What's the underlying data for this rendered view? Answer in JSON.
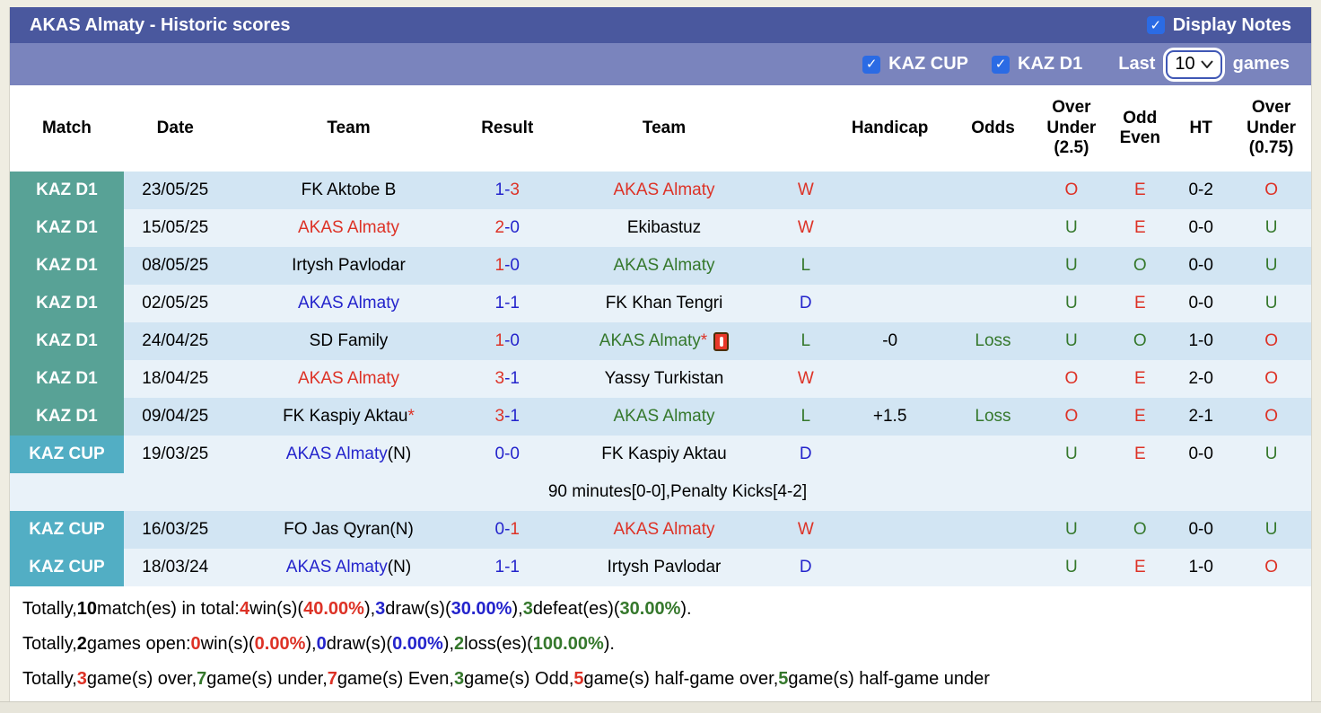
{
  "header": {
    "title": "AKAS Almaty - Historic scores",
    "display_notes_label": "Display Notes"
  },
  "filters": {
    "kaz_cup_label": "KAZ CUP",
    "kaz_d1_label": "KAZ D1",
    "last_label": "Last",
    "games_count": "10",
    "games_label": "games"
  },
  "colors": {
    "k": "#000000",
    "red": "#dd3226",
    "blue": "#2424cc",
    "green": "#35782c",
    "badge_d1": "#58a296",
    "badge_cup": "#52aec4",
    "titlebar": "#4a589e",
    "filterbar": "#7a84bd",
    "checkbox": "#2b6be4",
    "row_dark": "#d2e5f3",
    "row_light": "#e9f2f9"
  },
  "table": {
    "columns": [
      {
        "label": "Match"
      },
      {
        "label": "Date"
      },
      {
        "label": "Team"
      },
      {
        "label": "Result"
      },
      {
        "label": "Team"
      },
      {
        "label": ""
      },
      {
        "label": "Handicap"
      },
      {
        "label": "Odds"
      },
      {
        "label": "Over\nUnder\n(2.5)"
      },
      {
        "label": "Odd\nEven"
      },
      {
        "label": "HT"
      },
      {
        "label": "Over\nUnder\n(0.75)"
      }
    ],
    "rows": [
      {
        "type": "match",
        "stripe": "dark",
        "league": "KAZ D1",
        "league_class": "d1",
        "date": "23/05/25",
        "team1": [
          {
            "t": "FK Aktobe B",
            "c": "k"
          }
        ],
        "result": {
          "h": "1",
          "hc": "blue",
          "a": "3",
          "ac": "red",
          "dc": "blue"
        },
        "team2": [
          {
            "t": "AKAS Almaty",
            "c": "red"
          }
        ],
        "wdl": {
          "t": "W",
          "c": "red"
        },
        "handicap": "",
        "odds": {
          "t": "",
          "c": "green"
        },
        "ou25": {
          "t": "O",
          "c": "red"
        },
        "oe": {
          "t": "E",
          "c": "red"
        },
        "ht": "0-2",
        "ou075": {
          "t": "O",
          "c": "red"
        }
      },
      {
        "type": "match",
        "stripe": "light",
        "league": "KAZ D1",
        "league_class": "d1",
        "date": "15/05/25",
        "team1": [
          {
            "t": "AKAS Almaty",
            "c": "red"
          }
        ],
        "result": {
          "h": "2",
          "hc": "red",
          "a": "0",
          "ac": "blue",
          "dc": "blue"
        },
        "team2": [
          {
            "t": "Ekibastuz",
            "c": "k"
          }
        ],
        "wdl": {
          "t": "W",
          "c": "red"
        },
        "handicap": "",
        "odds": {
          "t": "",
          "c": "green"
        },
        "ou25": {
          "t": "U",
          "c": "green"
        },
        "oe": {
          "t": "E",
          "c": "red"
        },
        "ht": "0-0",
        "ou075": {
          "t": "U",
          "c": "green"
        }
      },
      {
        "type": "match",
        "stripe": "dark",
        "league": "KAZ D1",
        "league_class": "d1",
        "date": "08/05/25",
        "team1": [
          {
            "t": "Irtysh Pavlodar",
            "c": "k"
          }
        ],
        "result": {
          "h": "1",
          "hc": "red",
          "a": "0",
          "ac": "blue",
          "dc": "blue"
        },
        "team2": [
          {
            "t": "AKAS Almaty",
            "c": "green"
          }
        ],
        "wdl": {
          "t": "L",
          "c": "green"
        },
        "handicap": "",
        "odds": {
          "t": "",
          "c": "green"
        },
        "ou25": {
          "t": "U",
          "c": "green"
        },
        "oe": {
          "t": "O",
          "c": "green"
        },
        "ht": "0-0",
        "ou075": {
          "t": "U",
          "c": "green"
        }
      },
      {
        "type": "match",
        "stripe": "light",
        "league": "KAZ D1",
        "league_class": "d1",
        "date": "02/05/25",
        "team1": [
          {
            "t": "AKAS Almaty",
            "c": "blue"
          }
        ],
        "result": {
          "h": "1",
          "hc": "blue",
          "a": "1",
          "ac": "blue",
          "dc": "blue"
        },
        "team2": [
          {
            "t": "FK Khan Tengri",
            "c": "k"
          }
        ],
        "wdl": {
          "t": "D",
          "c": "blue"
        },
        "handicap": "",
        "odds": {
          "t": "",
          "c": "green"
        },
        "ou25": {
          "t": "U",
          "c": "green"
        },
        "oe": {
          "t": "E",
          "c": "red"
        },
        "ht": "0-0",
        "ou075": {
          "t": "U",
          "c": "green"
        }
      },
      {
        "type": "match",
        "stripe": "dark",
        "league": "KAZ D1",
        "league_class": "d1",
        "date": "24/04/25",
        "team1": [
          {
            "t": "SD Family",
            "c": "k"
          }
        ],
        "result": {
          "h": "1",
          "hc": "red",
          "a": "0",
          "ac": "blue",
          "dc": "blue"
        },
        "team2": [
          {
            "t": "AKAS Almaty",
            "c": "green"
          },
          {
            "t": "*",
            "c": "red"
          },
          {
            "icon": "red-card-icon"
          }
        ],
        "wdl": {
          "t": "L",
          "c": "green"
        },
        "handicap": "-0",
        "odds": {
          "t": "Loss",
          "c": "green"
        },
        "ou25": {
          "t": "U",
          "c": "green"
        },
        "oe": {
          "t": "O",
          "c": "green"
        },
        "ht": "1-0",
        "ou075": {
          "t": "O",
          "c": "red"
        }
      },
      {
        "type": "match",
        "stripe": "light",
        "league": "KAZ D1",
        "league_class": "d1",
        "date": "18/04/25",
        "team1": [
          {
            "t": "AKAS Almaty",
            "c": "red"
          }
        ],
        "result": {
          "h": "3",
          "hc": "red",
          "a": "1",
          "ac": "blue",
          "dc": "blue"
        },
        "team2": [
          {
            "t": "Yassy Turkistan",
            "c": "k"
          }
        ],
        "wdl": {
          "t": "W",
          "c": "red"
        },
        "handicap": "",
        "odds": {
          "t": "",
          "c": "green"
        },
        "ou25": {
          "t": "O",
          "c": "red"
        },
        "oe": {
          "t": "E",
          "c": "red"
        },
        "ht": "2-0",
        "ou075": {
          "t": "O",
          "c": "red"
        }
      },
      {
        "type": "match",
        "stripe": "dark",
        "league": "KAZ D1",
        "league_class": "d1",
        "date": "09/04/25",
        "team1": [
          {
            "t": "FK Kaspiy Aktau",
            "c": "k"
          },
          {
            "t": "*",
            "c": "red"
          }
        ],
        "result": {
          "h": "3",
          "hc": "red",
          "a": "1",
          "ac": "blue",
          "dc": "blue"
        },
        "team2": [
          {
            "t": "AKAS Almaty",
            "c": "green"
          }
        ],
        "wdl": {
          "t": "L",
          "c": "green"
        },
        "handicap": "+1.5",
        "odds": {
          "t": "Loss",
          "c": "green"
        },
        "ou25": {
          "t": "O",
          "c": "red"
        },
        "oe": {
          "t": "E",
          "c": "red"
        },
        "ht": "2-1",
        "ou075": {
          "t": "O",
          "c": "red"
        }
      },
      {
        "type": "match",
        "stripe": "light",
        "league": "KAZ CUP",
        "league_class": "cup",
        "date": "19/03/25",
        "team1": [
          {
            "t": "AKAS Almaty",
            "c": "blue"
          },
          {
            "t": "(N)",
            "c": "k"
          }
        ],
        "result": {
          "h": "0",
          "hc": "blue",
          "a": "0",
          "ac": "blue",
          "dc": "blue"
        },
        "team2": [
          {
            "t": "FK Kaspiy Aktau",
            "c": "k"
          }
        ],
        "wdl": {
          "t": "D",
          "c": "blue"
        },
        "handicap": "",
        "odds": {
          "t": "",
          "c": "green"
        },
        "ou25": {
          "t": "U",
          "c": "green"
        },
        "oe": {
          "t": "E",
          "c": "red"
        },
        "ht": "0-0",
        "ou075": {
          "t": "U",
          "c": "green"
        }
      },
      {
        "type": "note",
        "stripe": "light",
        "text": "90 minutes[0-0],Penalty Kicks[4-2]"
      },
      {
        "type": "match",
        "stripe": "dark",
        "league": "KAZ CUP",
        "league_class": "cup",
        "date": "16/03/25",
        "team1": [
          {
            "t": "FO Jas Qyran(N)",
            "c": "k"
          }
        ],
        "result": {
          "h": "0",
          "hc": "blue",
          "a": "1",
          "ac": "red",
          "dc": "blue"
        },
        "team2": [
          {
            "t": "AKAS Almaty",
            "c": "red"
          }
        ],
        "wdl": {
          "t": "W",
          "c": "red"
        },
        "handicap": "",
        "odds": {
          "t": "",
          "c": "green"
        },
        "ou25": {
          "t": "U",
          "c": "green"
        },
        "oe": {
          "t": "O",
          "c": "green"
        },
        "ht": "0-0",
        "ou075": {
          "t": "U",
          "c": "green"
        }
      },
      {
        "type": "match",
        "stripe": "light",
        "league": "KAZ CUP",
        "league_class": "cup",
        "date": "18/03/24",
        "team1": [
          {
            "t": "AKAS Almaty",
            "c": "blue"
          },
          {
            "t": "(N)",
            "c": "k"
          }
        ],
        "result": {
          "h": "1",
          "hc": "blue",
          "a": "1",
          "ac": "blue",
          "dc": "blue"
        },
        "team2": [
          {
            "t": "Irtysh Pavlodar",
            "c": "k"
          }
        ],
        "wdl": {
          "t": "D",
          "c": "blue"
        },
        "handicap": "",
        "odds": {
          "t": "",
          "c": "green"
        },
        "ou25": {
          "t": "U",
          "c": "green"
        },
        "oe": {
          "t": "E",
          "c": "red"
        },
        "ht": "1-0",
        "ou075": {
          "t": "O",
          "c": "red"
        }
      }
    ]
  },
  "summary_lines": [
    [
      {
        "t": "Totally, ",
        "c": "k"
      },
      {
        "t": "10",
        "c": "k",
        "b": true
      },
      {
        "t": " match(es) in total: ",
        "c": "k"
      },
      {
        "t": "4",
        "c": "red",
        "b": true
      },
      {
        "t": " win(s)(",
        "c": "k"
      },
      {
        "t": "40.00%",
        "c": "red",
        "b": true
      },
      {
        "t": "), ",
        "c": "k"
      },
      {
        "t": "3",
        "c": "blue",
        "b": true
      },
      {
        "t": " draw(s)(",
        "c": "k"
      },
      {
        "t": "30.00%",
        "c": "blue",
        "b": true
      },
      {
        "t": "), ",
        "c": "k"
      },
      {
        "t": "3",
        "c": "green",
        "b": true
      },
      {
        "t": " defeat(es)(",
        "c": "k"
      },
      {
        "t": "30.00%",
        "c": "green",
        "b": true
      },
      {
        "t": ").",
        "c": "k"
      }
    ],
    [
      {
        "t": "Totally, ",
        "c": "k"
      },
      {
        "t": "2",
        "c": "k",
        "b": true
      },
      {
        "t": " games open: ",
        "c": "k"
      },
      {
        "t": "0",
        "c": "red",
        "b": true
      },
      {
        "t": " win(s)(",
        "c": "k"
      },
      {
        "t": "0.00%",
        "c": "red",
        "b": true
      },
      {
        "t": "), ",
        "c": "k"
      },
      {
        "t": "0",
        "c": "blue",
        "b": true
      },
      {
        "t": " draw(s)(",
        "c": "k"
      },
      {
        "t": "0.00%",
        "c": "blue",
        "b": true
      },
      {
        "t": "), ",
        "c": "k"
      },
      {
        "t": "2",
        "c": "green",
        "b": true
      },
      {
        "t": " loss(es)(",
        "c": "k"
      },
      {
        "t": "100.00%",
        "c": "green",
        "b": true
      },
      {
        "t": ").",
        "c": "k"
      }
    ],
    [
      {
        "t": "Totally, ",
        "c": "k"
      },
      {
        "t": "3",
        "c": "red",
        "b": true
      },
      {
        "t": " game(s) over, ",
        "c": "k"
      },
      {
        "t": "7",
        "c": "green",
        "b": true
      },
      {
        "t": " game(s) under, ",
        "c": "k"
      },
      {
        "t": "7",
        "c": "red",
        "b": true
      },
      {
        "t": " game(s) Even, ",
        "c": "k"
      },
      {
        "t": "3",
        "c": "green",
        "b": true
      },
      {
        "t": " game(s) Odd, ",
        "c": "k"
      },
      {
        "t": "5",
        "c": "red",
        "b": true
      },
      {
        "t": " game(s) half-game over, ",
        "c": "k"
      },
      {
        "t": "5",
        "c": "green",
        "b": true
      },
      {
        "t": " game(s) half-game under",
        "c": "k"
      }
    ]
  ]
}
